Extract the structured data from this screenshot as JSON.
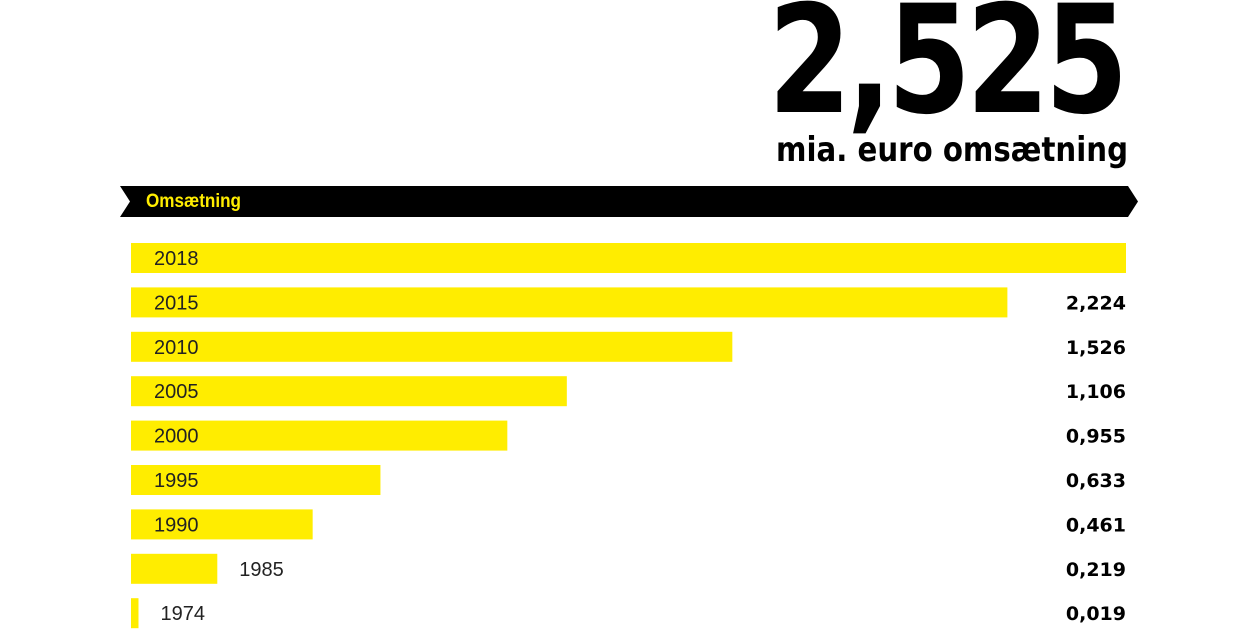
{
  "headline": {
    "value": "2,525",
    "unit": "mia. euro omsætning"
  },
  "banner": {
    "label": "Omsætning"
  },
  "colors": {
    "bar": "#ffed00",
    "banner_bg": "#000000",
    "banner_text": "#ffed00"
  },
  "chart_data": {
    "type": "bar",
    "orientation": "horizontal",
    "title": "Omsætning",
    "unit": "mia. euro",
    "categories": [
      "2018",
      "2015",
      "2010",
      "2005",
      "2000",
      "1995",
      "1990",
      "1985",
      "1974"
    ],
    "values": [
      2.525,
      2.224,
      1.526,
      1.106,
      0.955,
      0.633,
      0.461,
      0.219,
      0.019
    ],
    "value_labels": [
      "",
      "2,224",
      "1,526",
      "1,106",
      "0,955",
      "0,633",
      "0,461",
      "0,219",
      "0,019"
    ],
    "xlim": [
      0,
      2.525
    ]
  }
}
